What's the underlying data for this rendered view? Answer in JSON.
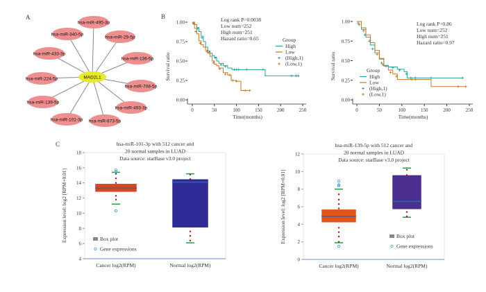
{
  "panel_labels": {
    "a": "A",
    "b": "B",
    "c": "C"
  },
  "network": {
    "hub": "MAD2L1",
    "hub_color": "#e8e830",
    "node_color": "#ee8f8f",
    "nodes": [
      "hsa-miR-495-3p",
      "hsa-miR-340-5p",
      "hsa-miR-29-5p",
      "hsa-miR-433-3p",
      "hsa-miR-136-5p",
      "hsa-miR-224-5p",
      "hsa-miR-708-5p",
      "hsa-miR-139-5p",
      "hsa-miR-493-3p",
      "hsa-miR-101-3p",
      "hsa-miR-873-5p"
    ]
  },
  "chart_data": [
    {
      "type": "line",
      "title": "",
      "xlabel": "Time(months)",
      "ylabel": "Survival ratio",
      "xlim": [
        0,
        250
      ],
      "ylim": [
        0,
        1
      ],
      "xticks": [
        "0",
        "50",
        "100",
        "150",
        "200",
        "250"
      ],
      "yticks": [
        "0.00",
        "0.25",
        "0.50",
        "0.75",
        "1.00"
      ],
      "annotations": [
        "Log rank P=0.0038",
        "Low num=252",
        "High num=251",
        "Hazard ratio=0.65"
      ],
      "legend": {
        "title": "Group",
        "placement": "right",
        "entries": [
          "High",
          "Low",
          "(High,1)",
          "(Low,1)"
        ]
      },
      "series": [
        {
          "name": "High",
          "color": "#2aa198",
          "points": [
            [
              0,
              1
            ],
            [
              5,
              0.97
            ],
            [
              10,
              0.93
            ],
            [
              15,
              0.88
            ],
            [
              20,
              0.82
            ],
            [
              25,
              0.75
            ],
            [
              30,
              0.68
            ],
            [
              35,
              0.63
            ],
            [
              40,
              0.6
            ],
            [
              45,
              0.57
            ],
            [
              50,
              0.55
            ],
            [
              55,
              0.5
            ],
            [
              60,
              0.47
            ],
            [
              70,
              0.44
            ],
            [
              80,
              0.41
            ],
            [
              90,
              0.39
            ],
            [
              165,
              0.39
            ],
            [
              165,
              0.31
            ],
            [
              240,
              0.31
            ]
          ],
          "censor": [
            [
              3,
              0.98
            ],
            [
              12,
              0.92
            ],
            [
              22,
              0.8
            ],
            [
              38,
              0.61
            ],
            [
              52,
              0.54
            ],
            [
              65,
              0.45
            ],
            [
              75,
              0.43
            ],
            [
              95,
              0.39
            ],
            [
              100,
              0.39
            ],
            [
              105,
              0.39
            ],
            [
              123,
              0.39
            ],
            [
              160,
              0.39
            ],
            [
              225,
              0.31
            ],
            [
              235,
              0.31
            ],
            [
              240,
              0.31
            ]
          ]
        },
        {
          "name": "Low",
          "color": "#c27a2c",
          "points": [
            [
              0,
              1
            ],
            [
              5,
              0.92
            ],
            [
              10,
              0.85
            ],
            [
              15,
              0.76
            ],
            [
              20,
              0.71
            ],
            [
              25,
              0.68
            ],
            [
              30,
              0.64
            ],
            [
              35,
              0.6
            ],
            [
              40,
              0.56
            ],
            [
              45,
              0.5
            ],
            [
              50,
              0.46
            ],
            [
              55,
              0.44
            ],
            [
              60,
              0.41
            ],
            [
              70,
              0.35
            ],
            [
              80,
              0.32
            ],
            [
              88,
              0.25
            ],
            [
              100,
              0.24
            ],
            [
              110,
              0.17
            ],
            [
              110,
              0.12
            ],
            [
              130,
              0.12
            ]
          ],
          "censor": [
            [
              2,
              0.99
            ],
            [
              8,
              0.88
            ],
            [
              18,
              0.73
            ],
            [
              33,
              0.62
            ],
            [
              48,
              0.48
            ],
            [
              62,
              0.4
            ],
            [
              75,
              0.33
            ],
            [
              85,
              0.32
            ],
            [
              92,
              0.25
            ],
            [
              100,
              0.24
            ],
            [
              120,
              0.12
            ],
            [
              130,
              0.12
            ]
          ]
        }
      ]
    },
    {
      "type": "line",
      "title": "",
      "xlabel": "Time(months)",
      "ylabel": "Survival ratio",
      "xlim": [
        0,
        250
      ],
      "ylim": [
        0,
        1
      ],
      "xticks": [
        "0",
        "50",
        "100",
        "150",
        "200",
        "250"
      ],
      "yticks": [
        "0.00",
        "0.25",
        "0.50",
        "0.75",
        "1.00"
      ],
      "annotations": [
        "Log rank P=0.86",
        "Low num=252",
        "High num=251",
        "Hazard ratio=0.97"
      ],
      "legend": {
        "title": "Group",
        "placement": "bottom-left",
        "entries": [
          "High",
          "Low",
          "(High,1)",
          "(Low,1)"
        ]
      },
      "series": [
        {
          "name": "High",
          "color": "#2aa198",
          "points": [
            [
              0,
              1
            ],
            [
              10,
              0.9
            ],
            [
              20,
              0.8
            ],
            [
              30,
              0.7
            ],
            [
              40,
              0.6
            ],
            [
              50,
              0.52
            ],
            [
              60,
              0.44
            ],
            [
              70,
              0.42
            ],
            [
              90,
              0.39
            ],
            [
              105,
              0.36
            ],
            [
              112,
              0.28
            ],
            [
              235,
              0.28
            ]
          ],
          "censor": [
            [
              5,
              0.96
            ],
            [
              18,
              0.83
            ],
            [
              35,
              0.65
            ],
            [
              55,
              0.47
            ],
            [
              65,
              0.43
            ],
            [
              80,
              0.41
            ],
            [
              95,
              0.38
            ],
            [
              110,
              0.33
            ],
            [
              120,
              0.28
            ],
            [
              130,
              0.28
            ],
            [
              165,
              0.28
            ],
            [
              235,
              0.28
            ]
          ]
        },
        {
          "name": "Low",
          "color": "#c27a2c",
          "points": [
            [
              0,
              1
            ],
            [
              10,
              0.92
            ],
            [
              20,
              0.83
            ],
            [
              30,
              0.73
            ],
            [
              40,
              0.63
            ],
            [
              50,
              0.53
            ],
            [
              60,
              0.43
            ],
            [
              70,
              0.38
            ],
            [
              80,
              0.33
            ],
            [
              90,
              0.26
            ],
            [
              165,
              0.26
            ],
            [
              165,
              0.17
            ],
            [
              242,
              0.17
            ]
          ],
          "censor": [
            [
              3,
              0.98
            ],
            [
              15,
              0.88
            ],
            [
              28,
              0.75
            ],
            [
              45,
              0.58
            ],
            [
              58,
              0.45
            ],
            [
              75,
              0.35
            ],
            [
              88,
              0.3
            ],
            [
              122,
              0.26
            ],
            [
              130,
              0.26
            ],
            [
              225,
              0.17
            ],
            [
              242,
              0.17
            ]
          ]
        }
      ]
    },
    {
      "type": "box",
      "title": [
        "hsa-miR-101-3p with 512 cancer and",
        "20 normal samples in LUAD",
        "Data source: starBase v3.0 project"
      ],
      "ylabel": "Expression level: log2 [RPM+0.01]",
      "ylim": [
        4,
        18
      ],
      "yticks": [
        "4",
        "6",
        "8",
        "10",
        "12",
        "14",
        "16",
        "18"
      ],
      "legend": {
        "placement": "bottom-left",
        "entries": [
          "Box plot",
          "Gene expressions"
        ]
      },
      "categories": [
        "Cancer log2(RPM)",
        "Normal log2(RPM)"
      ],
      "boxes": [
        {
          "color": "#d9461f",
          "q1": 12.8,
          "median": 13.3,
          "q3": 13.9,
          "whisker_low": 11.2,
          "whisker_high": 15.4,
          "points": [
            15.2,
            14.6,
            14.0,
            12.3,
            11.8
          ],
          "outliers": [
            15.7,
            15.5,
            10.3
          ]
        },
        {
          "color": "#2e2a96",
          "q1": 8.1,
          "median": 14.1,
          "q3": 14.5,
          "whisker_low": 6.1,
          "whisker_high": 15.2,
          "points": [
            15.1,
            14.5,
            7.6,
            7.0,
            6.4
          ],
          "outliers": []
        }
      ]
    },
    {
      "type": "box",
      "title": [
        "hsa-miR-139-5p with 512 cancer and",
        "20 normal samples in LUAD",
        "Data source: starBase v3.0 project"
      ],
      "ylabel": "Expression level: log2 [RPM+0.01]",
      "ylim": [
        0,
        12
      ],
      "yticks": [
        "0",
        "2",
        "4",
        "6",
        "8",
        "10",
        "12"
      ],
      "legend": {
        "placement": "bottom-right",
        "entries": [
          "Box plot",
          "Gene expressions"
        ]
      },
      "categories": [
        "Cancer log2(RPM)",
        "Normal log2(RPM)"
      ],
      "boxes": [
        {
          "color": "#e0561a",
          "q1": 4.2,
          "median": 4.9,
          "q3": 5.7,
          "whisker_low": 1.9,
          "whisker_high": 8.0,
          "points": [
            7.4,
            6.8,
            6.3,
            5.8,
            3.6,
            3.1,
            2.6,
            2.0
          ],
          "outliers": [
            8.9,
            8.5,
            8.4,
            1.5
          ]
        },
        {
          "color": "#4a2f8f",
          "q1": 5.7,
          "median": 6.6,
          "q3": 9.6,
          "whisker_low": 4.8,
          "whisker_high": 10.4,
          "points": [
            10.2,
            9.6,
            5.4,
            4.9
          ],
          "outliers": []
        }
      ]
    }
  ]
}
